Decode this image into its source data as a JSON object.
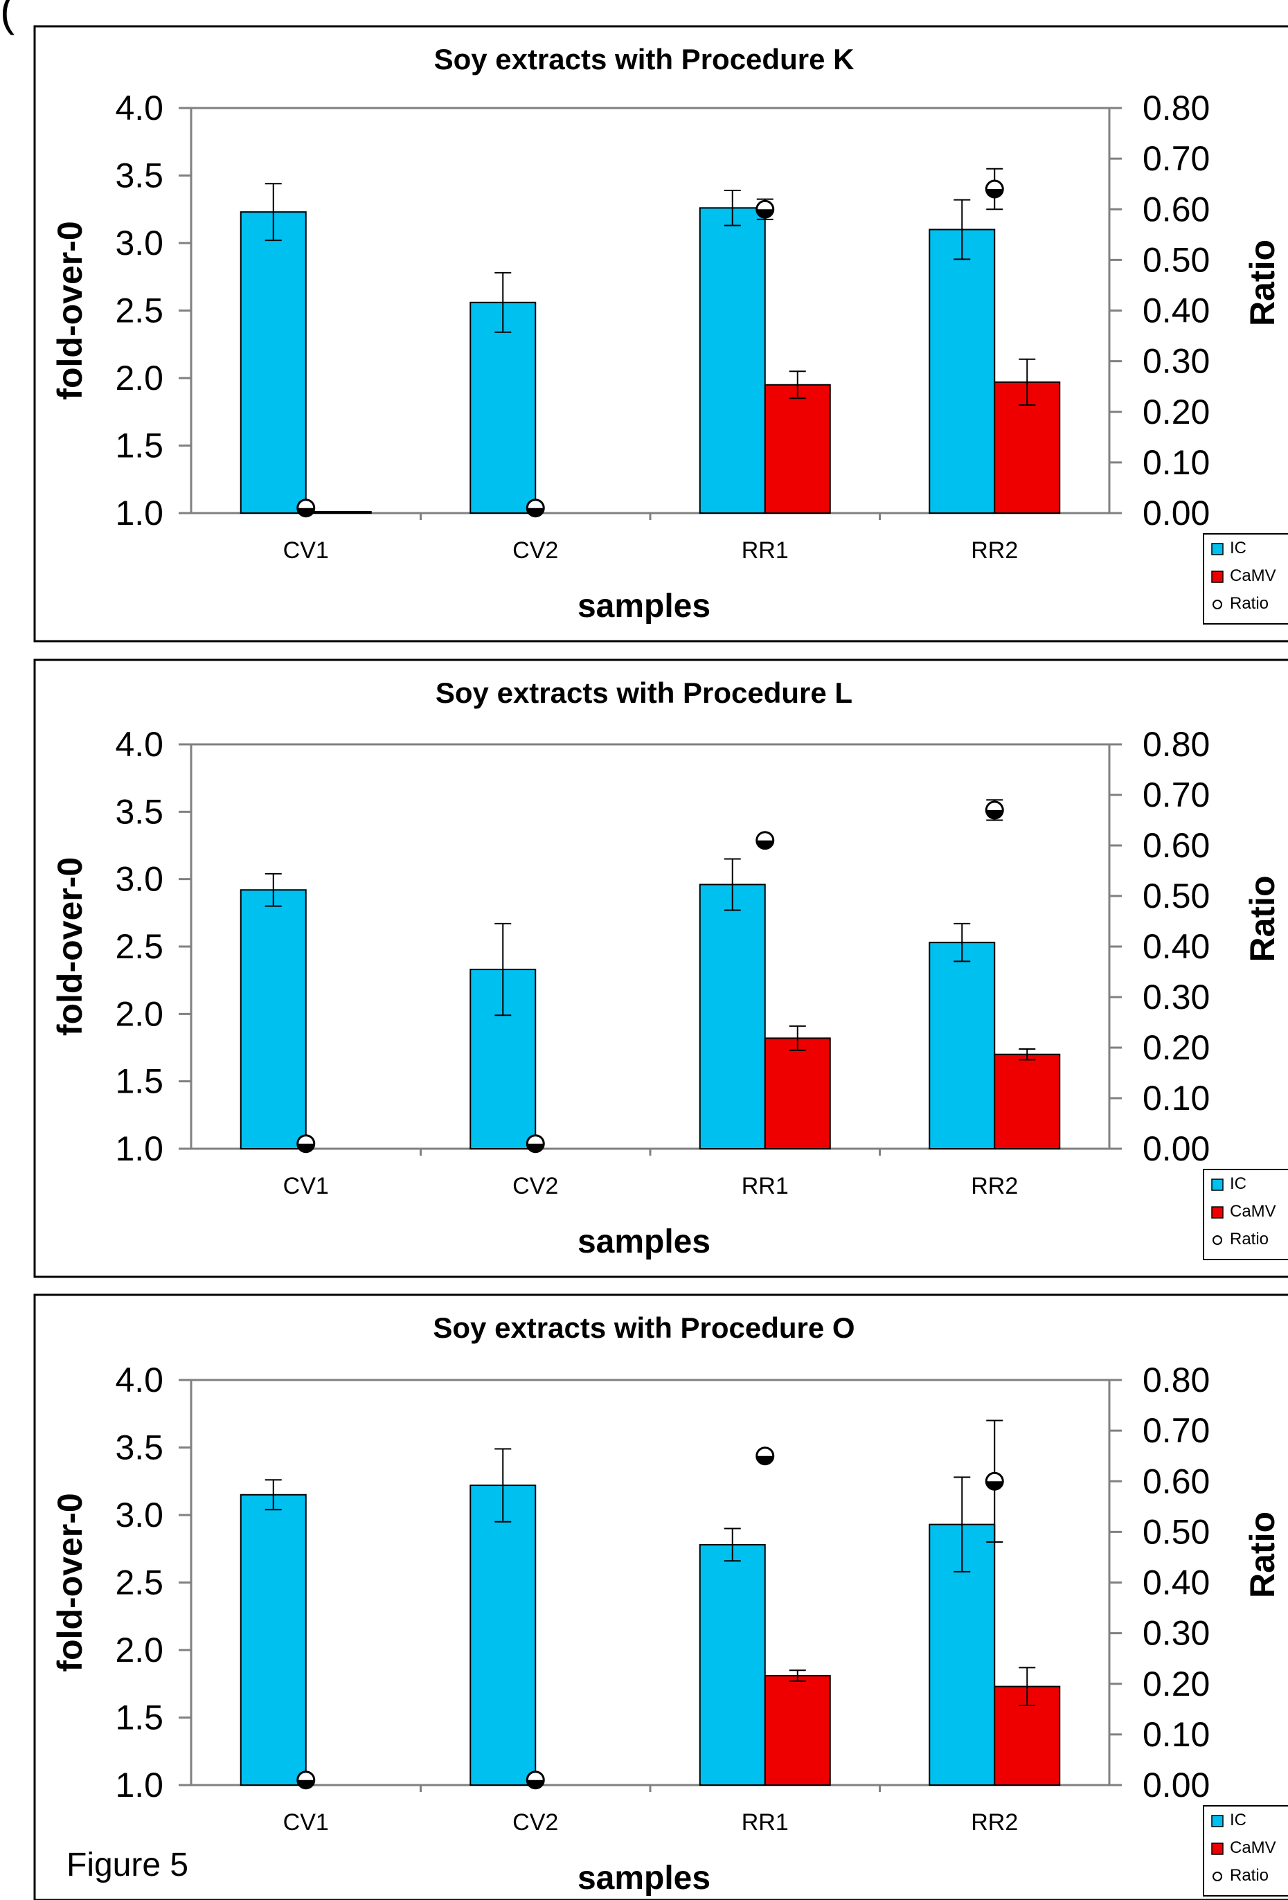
{
  "header_fragment": "(",
  "figure_label": "Figure 5",
  "colors": {
    "ic": "#00c0f0",
    "camv": "#ee0000",
    "ratio_fill": "#ffffff",
    "axis": "#808080"
  },
  "chart_data": [
    {
      "type": "bar",
      "title": "Soy extracts with Procedure K",
      "xlabel": "samples",
      "ylabel": "fold-over-0",
      "y2label": "Ratio",
      "categories": [
        "CV1",
        "CV2",
        "RR1",
        "RR2"
      ],
      "ylim": [
        1.0,
        4.0
      ],
      "yticks": [
        "4.0",
        "3.5",
        "3.0",
        "2.5",
        "2.0",
        "1.5",
        "1.0"
      ],
      "y2lim": [
        0.0,
        0.8
      ],
      "y2ticks": [
        "0.80",
        "0.70",
        "0.60",
        "0.50",
        "0.40",
        "0.30",
        "0.20",
        "0.10",
        "0.00"
      ],
      "series": [
        {
          "name": "IC",
          "kind": "bar",
          "values": [
            3.23,
            2.56,
            3.26,
            3.1
          ],
          "errors": [
            0.21,
            0.22,
            0.13,
            0.22
          ]
        },
        {
          "name": "CaMV",
          "kind": "bar",
          "values": [
            1.01,
            null,
            1.95,
            1.97
          ],
          "errors": [
            0,
            null,
            0.1,
            0.17
          ]
        },
        {
          "name": "Ratio",
          "kind": "point",
          "values": [
            0.01,
            0.01,
            0.6,
            0.64
          ],
          "errors": [
            0,
            0,
            0.02,
            0.04
          ]
        }
      ],
      "legend": [
        "IC",
        "CaMV",
        "Ratio"
      ],
      "legend_position": "bottom-right",
      "grid": false
    },
    {
      "type": "bar",
      "title": "Soy extracts with Procedure L",
      "xlabel": "samples",
      "ylabel": "fold-over-0",
      "y2label": "Ratio",
      "categories": [
        "CV1",
        "CV2",
        "RR1",
        "RR2"
      ],
      "ylim": [
        1.0,
        4.0
      ],
      "yticks": [
        "4.0",
        "3.5",
        "3.0",
        "2.5",
        "2.0",
        "1.5",
        "1.0"
      ],
      "y2lim": [
        0.0,
        0.8
      ],
      "y2ticks": [
        "0.80",
        "0.70",
        "0.60",
        "0.50",
        "0.40",
        "0.30",
        "0.20",
        "0.10",
        "0.00"
      ],
      "series": [
        {
          "name": "IC",
          "kind": "bar",
          "values": [
            2.92,
            2.33,
            2.96,
            2.53
          ],
          "errors": [
            0.12,
            0.34,
            0.19,
            0.14
          ]
        },
        {
          "name": "CaMV",
          "kind": "bar",
          "values": [
            null,
            null,
            1.82,
            1.7
          ],
          "errors": [
            null,
            null,
            0.09,
            0.04
          ]
        },
        {
          "name": "Ratio",
          "kind": "point",
          "values": [
            0.01,
            0.01,
            0.61,
            0.67
          ],
          "errors": [
            0,
            0,
            0,
            0.02
          ]
        }
      ],
      "legend": [
        "IC",
        "CaMV",
        "Ratio"
      ],
      "legend_position": "bottom-right",
      "grid": false
    },
    {
      "type": "bar",
      "title": "Soy extracts with Procedure O",
      "xlabel": "samples",
      "ylabel": "fold-over-0",
      "y2label": "Ratio",
      "categories": [
        "CV1",
        "CV2",
        "RR1",
        "RR2"
      ],
      "ylim": [
        1.0,
        4.0
      ],
      "yticks": [
        "4.0",
        "3.5",
        "3.0",
        "2.5",
        "2.0",
        "1.5",
        "1.0"
      ],
      "y2lim": [
        0.0,
        0.8
      ],
      "y2ticks": [
        "0.80",
        "0.70",
        "0.60",
        "0.50",
        "0.40",
        "0.30",
        "0.20",
        "0.10",
        "0.00"
      ],
      "series": [
        {
          "name": "IC",
          "kind": "bar",
          "values": [
            3.15,
            3.22,
            2.78,
            2.93
          ],
          "errors": [
            0.11,
            0.27,
            0.12,
            0.35
          ]
        },
        {
          "name": "CaMV",
          "kind": "bar",
          "values": [
            null,
            null,
            1.81,
            1.73
          ],
          "errors": [
            null,
            null,
            0.04,
            0.14
          ]
        },
        {
          "name": "Ratio",
          "kind": "point",
          "values": [
            0.01,
            0.01,
            0.65,
            0.6
          ],
          "errors": [
            0,
            0,
            0,
            0.12
          ]
        }
      ],
      "legend": [
        "IC",
        "CaMV",
        "Ratio"
      ],
      "legend_position": "bottom-right",
      "grid": false
    }
  ]
}
